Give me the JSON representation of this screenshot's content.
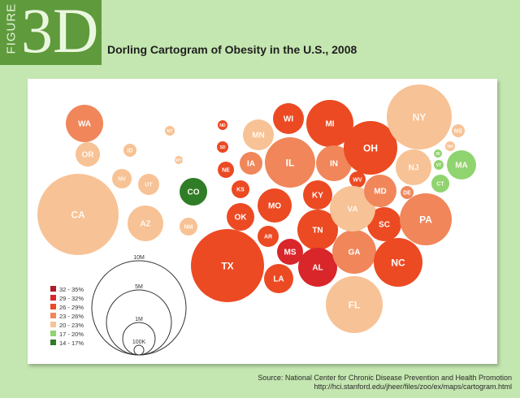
{
  "figure": {
    "word": "FIGURE",
    "number": "3D"
  },
  "title": "Dorling Cartogram of Obesity in the U.S., 2008",
  "source": {
    "line1": "Source: National Center for Chronic Disease Prevention and Health Promotion",
    "line2": "http://hci.stanford.edu/jheer/files/zoo/ex/maps/cartogram.html"
  },
  "chart_data": {
    "type": "bubble-cartogram",
    "title": "Dorling Cartogram of Obesity in the U.S., 2008",
    "legend": [
      {
        "label": "32 - 35%",
        "color": "#b11c28"
      },
      {
        "label": "29 - 32%",
        "color": "#d8262b"
      },
      {
        "label": "26 - 29%",
        "color": "#ec4a23"
      },
      {
        "label": "23 - 26%",
        "color": "#f0865a"
      },
      {
        "label": "20 - 23%",
        "color": "#f7c295"
      },
      {
        "label": "17 - 20%",
        "color": "#8fd46f"
      },
      {
        "label": "14 - 17%",
        "color": "#2f7d26"
      }
    ],
    "size_legend": [
      "10M",
      "5M",
      "1M",
      "100K"
    ],
    "states": [
      {
        "abbr": "WA",
        "bin": 3
      },
      {
        "abbr": "OR",
        "bin": 4
      },
      {
        "abbr": "CA",
        "bin": 4
      },
      {
        "abbr": "NV",
        "bin": 4
      },
      {
        "abbr": "ID",
        "bin": 4
      },
      {
        "abbr": "MT",
        "bin": 4
      },
      {
        "abbr": "WY",
        "bin": 4
      },
      {
        "abbr": "UT",
        "bin": 4
      },
      {
        "abbr": "AZ",
        "bin": 4
      },
      {
        "abbr": "CO",
        "bin": 6
      },
      {
        "abbr": "NM",
        "bin": 4
      },
      {
        "abbr": "ND",
        "bin": 2
      },
      {
        "abbr": "SD",
        "bin": 2
      },
      {
        "abbr": "NE",
        "bin": 2
      },
      {
        "abbr": "KS",
        "bin": 2
      },
      {
        "abbr": "OK",
        "bin": 2
      },
      {
        "abbr": "TX",
        "bin": 2
      },
      {
        "abbr": "MN",
        "bin": 4
      },
      {
        "abbr": "IA",
        "bin": 3
      },
      {
        "abbr": "MO",
        "bin": 2
      },
      {
        "abbr": "AR",
        "bin": 2
      },
      {
        "abbr": "LA",
        "bin": 2
      },
      {
        "abbr": "WI",
        "bin": 2
      },
      {
        "abbr": "IL",
        "bin": 3
      },
      {
        "abbr": "MI",
        "bin": 2
      },
      {
        "abbr": "IN",
        "bin": 3
      },
      {
        "abbr": "KY",
        "bin": 2
      },
      {
        "abbr": "TN",
        "bin": 2
      },
      {
        "abbr": "MS",
        "bin": 1
      },
      {
        "abbr": "AL",
        "bin": 1
      },
      {
        "abbr": "OH",
        "bin": 2
      },
      {
        "abbr": "WV",
        "bin": 2
      },
      {
        "abbr": "GA",
        "bin": 3
      },
      {
        "abbr": "FL",
        "bin": 4
      },
      {
        "abbr": "SC",
        "bin": 2
      },
      {
        "abbr": "NC",
        "bin": 2
      },
      {
        "abbr": "VA",
        "bin": 4
      },
      {
        "abbr": "MD",
        "bin": 3
      },
      {
        "abbr": "DE",
        "bin": 3
      },
      {
        "abbr": "PA",
        "bin": 3
      },
      {
        "abbr": "NY",
        "bin": 4
      },
      {
        "abbr": "NJ",
        "bin": 4
      },
      {
        "abbr": "CT",
        "bin": 5
      },
      {
        "abbr": "MA",
        "bin": 5
      },
      {
        "abbr": "VT",
        "bin": 5
      },
      {
        "abbr": "NH",
        "bin": 4
      },
      {
        "abbr": "ME",
        "bin": 4
      },
      {
        "abbr": "RI",
        "bin": 5
      }
    ]
  }
}
